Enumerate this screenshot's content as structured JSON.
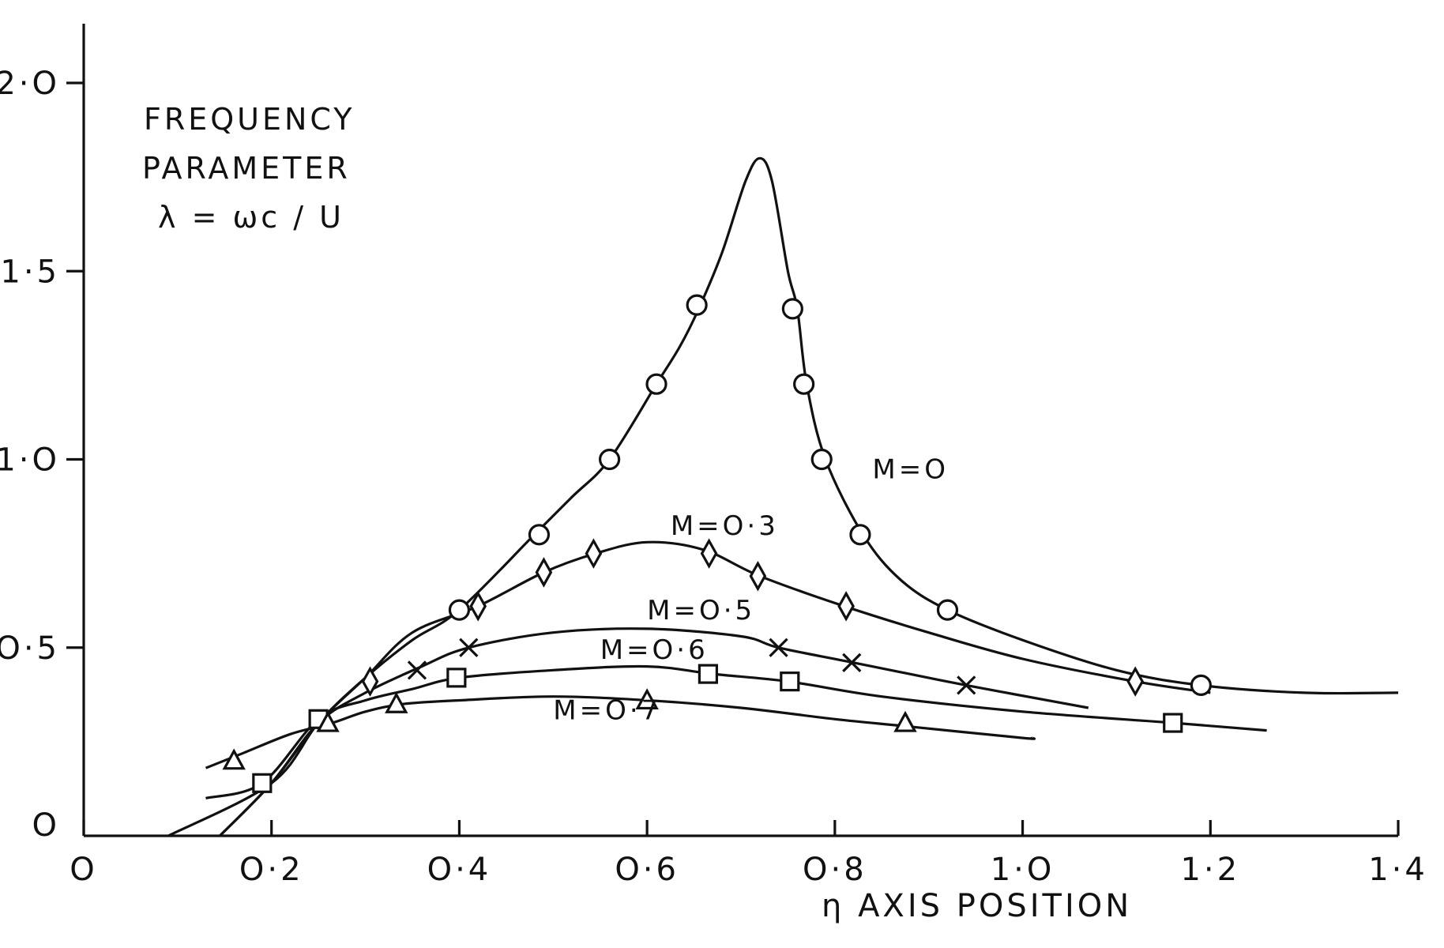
{
  "chart_data": {
    "type": "line",
    "xlabel": "η  AXIS  POSITION",
    "ylabel_lines": [
      "FREQUENCY",
      "PARAMETER",
      "λ = ωc / U"
    ],
    "xlim": [
      0,
      1.4
    ],
    "ylim": [
      0,
      2.0
    ],
    "x_ticks": [
      0,
      0.2,
      0.4,
      0.6,
      0.8,
      1.0,
      1.2,
      1.4
    ],
    "x_tick_labels": [
      "O",
      "O·2",
      "O·4",
      "O·6",
      "O·8",
      "1·O",
      "1·2",
      "1·4"
    ],
    "y_ticks": [
      0,
      0.5,
      1.0,
      1.5,
      2.0
    ],
    "y_tick_labels": [
      "O",
      "O·5",
      "1·O",
      "1·5",
      "2·O"
    ],
    "grid": false,
    "series": [
      {
        "name": "M=O",
        "marker": "circle",
        "curve": [
          [
            0.09,
            0
          ],
          [
            0.2,
            0.14
          ],
          [
            0.25,
            0.3
          ],
          [
            0.3,
            0.42
          ],
          [
            0.35,
            0.52
          ],
          [
            0.4,
            0.6
          ],
          [
            0.48,
            0.8
          ],
          [
            0.52,
            0.9
          ],
          [
            0.56,
            1.0
          ],
          [
            0.61,
            1.2
          ],
          [
            0.635,
            1.3
          ],
          [
            0.655,
            1.4
          ],
          [
            0.68,
            1.55
          ],
          [
            0.705,
            1.74
          ],
          [
            0.72,
            1.8
          ],
          [
            0.733,
            1.74
          ],
          [
            0.75,
            1.5
          ],
          [
            0.76,
            1.4
          ],
          [
            0.77,
            1.2
          ],
          [
            0.79,
            1.0
          ],
          [
            0.83,
            0.8
          ],
          [
            0.87,
            0.68
          ],
          [
            0.92,
            0.6
          ],
          [
            1.0,
            0.52
          ],
          [
            1.1,
            0.44
          ],
          [
            1.19,
            0.4
          ],
          [
            1.3,
            0.38
          ],
          [
            1.4,
            0.38
          ]
        ],
        "points": [
          [
            0.4,
            0.6
          ],
          [
            0.485,
            0.8
          ],
          [
            0.56,
            1.0
          ],
          [
            0.61,
            1.2
          ],
          [
            0.653,
            1.41
          ],
          [
            0.755,
            1.4
          ],
          [
            0.767,
            1.2
          ],
          [
            0.786,
            1.0
          ],
          [
            0.827,
            0.8
          ],
          [
            0.92,
            0.6
          ],
          [
            1.19,
            0.4
          ]
        ]
      },
      {
        "name": "M=O·3",
        "marker": "diamond",
        "curve": [
          [
            0.145,
            0
          ],
          [
            0.2,
            0.14
          ],
          [
            0.25,
            0.3
          ],
          [
            0.3,
            0.42
          ],
          [
            0.35,
            0.54
          ],
          [
            0.42,
            0.61
          ],
          [
            0.49,
            0.7
          ],
          [
            0.545,
            0.75
          ],
          [
            0.6,
            0.78
          ],
          [
            0.66,
            0.76
          ],
          [
            0.72,
            0.69
          ],
          [
            0.81,
            0.61
          ],
          [
            0.9,
            0.54
          ],
          [
            1.0,
            0.47
          ],
          [
            1.12,
            0.41
          ],
          [
            1.2,
            0.38
          ]
        ],
        "points": [
          [
            0.305,
            0.41
          ],
          [
            0.42,
            0.61
          ],
          [
            0.49,
            0.7
          ],
          [
            0.543,
            0.75
          ],
          [
            0.666,
            0.75
          ],
          [
            0.718,
            0.69
          ],
          [
            0.812,
            0.61
          ],
          [
            1.12,
            0.41
          ]
        ]
      },
      {
        "name": "M=O·5",
        "marker": "cross",
        "curve": [
          [
            0.145,
            0
          ],
          [
            0.2,
            0.14
          ],
          [
            0.25,
            0.3
          ],
          [
            0.3,
            0.38
          ],
          [
            0.36,
            0.45
          ],
          [
            0.41,
            0.5
          ],
          [
            0.5,
            0.54
          ],
          [
            0.6,
            0.55
          ],
          [
            0.7,
            0.53
          ],
          [
            0.74,
            0.5
          ],
          [
            0.82,
            0.46
          ],
          [
            0.94,
            0.4
          ],
          [
            1.07,
            0.34
          ]
        ],
        "points": [
          [
            0.355,
            0.44
          ],
          [
            0.41,
            0.5
          ],
          [
            0.74,
            0.5
          ],
          [
            0.818,
            0.46
          ],
          [
            0.94,
            0.4
          ]
        ]
      },
      {
        "name": "M=O·6",
        "marker": "square",
        "curve": [
          [
            0.13,
            0.1
          ],
          [
            0.19,
            0.14
          ],
          [
            0.25,
            0.31
          ],
          [
            0.3,
            0.36
          ],
          [
            0.35,
            0.39
          ],
          [
            0.4,
            0.42
          ],
          [
            0.5,
            0.44
          ],
          [
            0.6,
            0.45
          ],
          [
            0.67,
            0.43
          ],
          [
            0.75,
            0.41
          ],
          [
            0.85,
            0.37
          ],
          [
            1.0,
            0.33
          ],
          [
            1.16,
            0.3
          ],
          [
            1.26,
            0.28
          ]
        ],
        "points": [
          [
            0.19,
            0.14
          ],
          [
            0.25,
            0.31
          ],
          [
            0.397,
            0.42
          ],
          [
            0.665,
            0.43
          ],
          [
            0.752,
            0.41
          ],
          [
            1.16,
            0.3
          ]
        ]
      },
      {
        "name": "M=O·7",
        "marker": "triangle",
        "curve": [
          [
            0.13,
            0.18
          ],
          [
            0.17,
            0.22
          ],
          [
            0.22,
            0.27
          ],
          [
            0.265,
            0.3
          ],
          [
            0.3,
            0.33
          ],
          [
            0.34,
            0.35
          ],
          [
            0.4,
            0.36
          ],
          [
            0.5,
            0.37
          ],
          [
            0.6,
            0.36
          ],
          [
            0.7,
            0.34
          ],
          [
            0.8,
            0.31
          ],
          [
            0.88,
            0.29
          ],
          [
            1.0,
            0.26
          ],
          [
            1.01,
            0.26
          ]
        ],
        "points": [
          [
            0.16,
            0.2
          ],
          [
            0.26,
            0.3
          ],
          [
            0.333,
            0.35
          ],
          [
            0.6,
            0.36
          ],
          [
            0.875,
            0.3
          ]
        ]
      }
    ],
    "annotations": [
      {
        "text": "M=O",
        "x": 0.84,
        "y": 0.95
      },
      {
        "text": "M=O·3",
        "x": 0.625,
        "y": 0.8
      },
      {
        "text": "M=O·5",
        "x": 0.6,
        "y": 0.575
      },
      {
        "text": "M=O·6",
        "x": 0.55,
        "y": 0.47
      },
      {
        "text": "M=O·7",
        "x": 0.5,
        "y": 0.31
      }
    ]
  }
}
